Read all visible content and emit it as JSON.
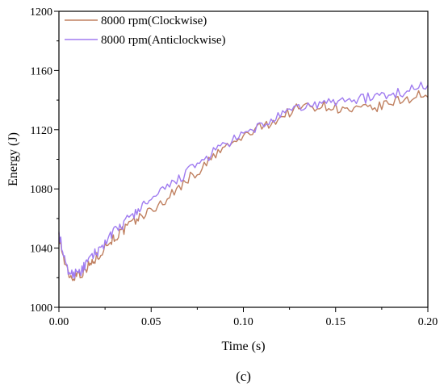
{
  "chart_data": {
    "type": "line",
    "xlabel": "Time (s)",
    "ylabel": "Energy (J)",
    "xlim": [
      0,
      0.2
    ],
    "ylim": [
      1000,
      1200
    ],
    "x_ticks": [
      "0.00",
      "0.05",
      "0.10",
      "0.15",
      "0.20"
    ],
    "y_ticks": [
      "1000",
      "1040",
      "1080",
      "1120",
      "1160",
      "1200"
    ],
    "legend_position": "top-left",
    "panel_label": "(c)",
    "series": [
      {
        "name": "8000 rpm(Clockwise)",
        "color": "#c08060",
        "points": [
          [
            0.0,
            1050
          ],
          [
            0.002,
            1036
          ],
          [
            0.004,
            1026
          ],
          [
            0.006,
            1021
          ],
          [
            0.008,
            1020
          ],
          [
            0.01,
            1024
          ],
          [
            0.012,
            1022
          ],
          [
            0.014,
            1026
          ],
          [
            0.016,
            1028
          ],
          [
            0.018,
            1030
          ],
          [
            0.02,
            1033
          ],
          [
            0.022,
            1036
          ],
          [
            0.025,
            1041
          ],
          [
            0.028,
            1045
          ],
          [
            0.03,
            1047
          ],
          [
            0.033,
            1050
          ],
          [
            0.036,
            1053
          ],
          [
            0.04,
            1057
          ],
          [
            0.043,
            1060
          ],
          [
            0.046,
            1063
          ],
          [
            0.05,
            1065
          ],
          [
            0.055,
            1070
          ],
          [
            0.06,
            1075
          ],
          [
            0.065,
            1081
          ],
          [
            0.07,
            1087
          ],
          [
            0.075,
            1091
          ],
          [
            0.08,
            1097
          ],
          [
            0.085,
            1103
          ],
          [
            0.09,
            1108
          ],
          [
            0.095,
            1111
          ],
          [
            0.1,
            1115
          ],
          [
            0.105,
            1119
          ],
          [
            0.11,
            1122
          ],
          [
            0.115,
            1125
          ],
          [
            0.12,
            1128
          ],
          [
            0.125,
            1132
          ],
          [
            0.13,
            1135
          ],
          [
            0.135,
            1136
          ],
          [
            0.14,
            1136
          ],
          [
            0.145,
            1136
          ],
          [
            0.15,
            1135
          ],
          [
            0.155,
            1133
          ],
          [
            0.16,
            1133
          ],
          [
            0.165,
            1134
          ],
          [
            0.17,
            1134
          ],
          [
            0.175,
            1136
          ],
          [
            0.18,
            1138
          ],
          [
            0.185,
            1140
          ],
          [
            0.19,
            1141
          ],
          [
            0.195,
            1144
          ],
          [
            0.2,
            1142
          ]
        ]
      },
      {
        "name": "8000 rpm(Anticlockwise)",
        "color": "#a07cf0",
        "points": [
          [
            0.0,
            1051
          ],
          [
            0.002,
            1037
          ],
          [
            0.004,
            1027
          ],
          [
            0.006,
            1023
          ],
          [
            0.008,
            1022
          ],
          [
            0.01,
            1026
          ],
          [
            0.012,
            1024
          ],
          [
            0.014,
            1028
          ],
          [
            0.016,
            1031
          ],
          [
            0.018,
            1034
          ],
          [
            0.02,
            1037
          ],
          [
            0.022,
            1039
          ],
          [
            0.025,
            1044
          ],
          [
            0.028,
            1048
          ],
          [
            0.03,
            1051
          ],
          [
            0.033,
            1054
          ],
          [
            0.036,
            1058
          ],
          [
            0.04,
            1062
          ],
          [
            0.043,
            1066
          ],
          [
            0.046,
            1069
          ],
          [
            0.05,
            1072
          ],
          [
            0.055,
            1077
          ],
          [
            0.06,
            1082
          ],
          [
            0.065,
            1087
          ],
          [
            0.07,
            1092
          ],
          [
            0.075,
            1096
          ],
          [
            0.08,
            1101
          ],
          [
            0.085,
            1106
          ],
          [
            0.09,
            1110
          ],
          [
            0.095,
            1113
          ],
          [
            0.1,
            1116
          ],
          [
            0.105,
            1120
          ],
          [
            0.11,
            1123
          ],
          [
            0.115,
            1126
          ],
          [
            0.12,
            1129
          ],
          [
            0.125,
            1132
          ],
          [
            0.13,
            1135
          ],
          [
            0.135,
            1136
          ],
          [
            0.14,
            1137
          ],
          [
            0.145,
            1138
          ],
          [
            0.15,
            1139
          ],
          [
            0.155,
            1140
          ],
          [
            0.16,
            1141
          ],
          [
            0.165,
            1141
          ],
          [
            0.17,
            1142
          ],
          [
            0.175,
            1143
          ],
          [
            0.18,
            1144
          ],
          [
            0.185,
            1145
          ],
          [
            0.19,
            1147
          ],
          [
            0.195,
            1149
          ],
          [
            0.2,
            1150
          ]
        ]
      }
    ]
  }
}
